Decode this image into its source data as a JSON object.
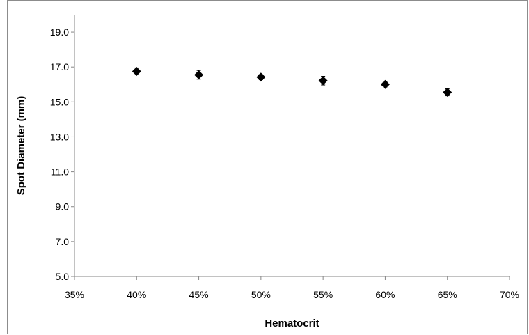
{
  "chart_data": {
    "type": "scatter",
    "title": "",
    "xlabel": "Hematocrit",
    "ylabel": "Spot Diameter (mm)",
    "xlim": [
      0.35,
      0.7
    ],
    "ylim": [
      5.0,
      20.0
    ],
    "x_ticks": [
      0.35,
      0.4,
      0.45,
      0.5,
      0.55,
      0.6,
      0.65,
      0.7
    ],
    "x_tick_labels": [
      "35%",
      "40%",
      "45%",
      "50%",
      "55%",
      "60%",
      "65%",
      "70%"
    ],
    "y_ticks": [
      5.0,
      7.0,
      9.0,
      11.0,
      13.0,
      15.0,
      17.0,
      19.0
    ],
    "y_tick_labels": [
      "5.0",
      "7.0",
      "9.0",
      "11.0",
      "13.0",
      "15.0",
      "17.0",
      "19.0"
    ],
    "grid": false,
    "legend": "none",
    "marker": "diamond",
    "marker_color": "#000000",
    "series": [
      {
        "x": [
          0.4,
          0.45,
          0.5,
          0.55,
          0.6,
          0.65
        ],
        "y": [
          16.75,
          16.55,
          16.42,
          16.22,
          16.0,
          15.55
        ],
        "error": [
          0.2,
          0.25,
          0.15,
          0.25,
          0.15,
          0.2
        ]
      }
    ]
  }
}
